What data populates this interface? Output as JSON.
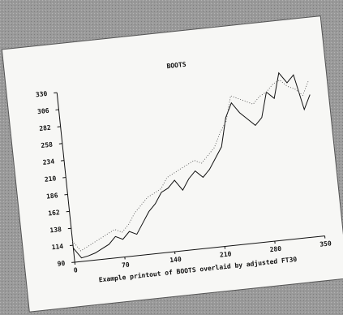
{
  "chart_data": {
    "type": "line",
    "title": "BOOTS",
    "caption": "Example printout of BOOTS overlaid by adjusted FT30",
    "x": [
      0,
      10,
      20,
      30,
      40,
      50,
      60,
      70,
      80,
      90,
      100,
      110,
      120,
      130,
      140,
      150,
      160,
      170,
      180,
      190,
      200,
      210,
      220,
      230,
      240,
      250,
      260,
      270,
      280,
      290,
      300,
      310,
      320,
      330,
      340,
      350
    ],
    "series": [
      {
        "color": "#111111",
        "style": "solid",
        "values": [
          110,
          95,
          97,
          100,
          105,
          110,
          120,
          115,
          125,
          120,
          135,
          150,
          160,
          175,
          180,
          190,
          175,
          190,
          200,
          190,
          200,
          215,
          230,
          270,
          290,
          275,
          265,
          255,
          265,
          300,
          290,
          325,
          310,
          320,
          270,
          290
        ]
      },
      {
        "color": "#666666",
        "style": "dotted",
        "values": [
          120,
          105,
          110,
          115,
          120,
          125,
          130,
          125,
          135,
          150,
          160,
          170,
          175,
          180,
          195,
          200,
          205,
          210,
          215,
          210,
          220,
          230,
          250,
          265,
          300,
          295,
          290,
          285,
          295,
          300,
          310,
          315,
          305,
          300,
          290,
          310
        ]
      }
    ],
    "xlim": [
      0,
      350
    ],
    "xticks": [
      0,
      70,
      140,
      210,
      280,
      350
    ],
    "ylim": [
      90,
      330
    ],
    "yticks": [
      90,
      114,
      138,
      162,
      186,
      210,
      234,
      258,
      282,
      306,
      330
    ],
    "grid": false
  }
}
